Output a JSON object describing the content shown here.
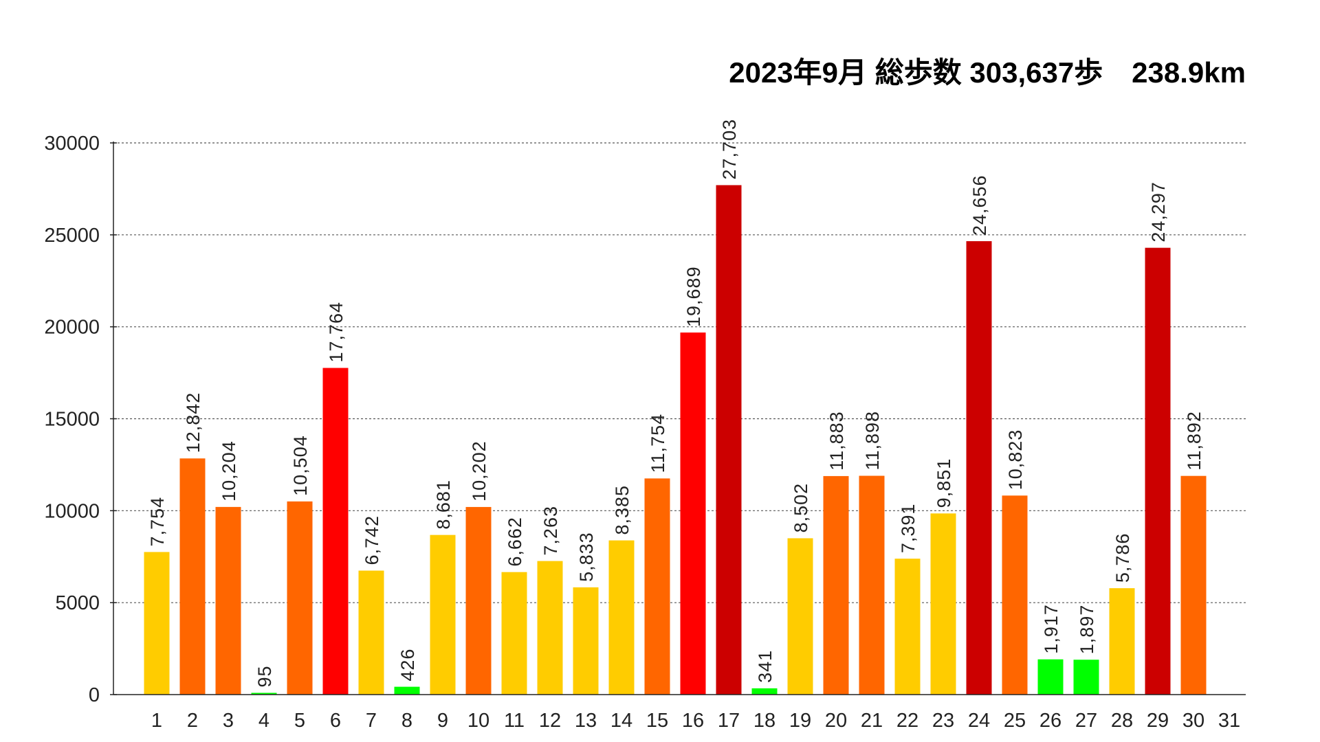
{
  "chart_data": {
    "type": "bar",
    "title": "2023年9月 総歩数 303,637歩　238.9km",
    "xlabel": "",
    "ylabel": "",
    "ylim": [
      0,
      30000
    ],
    "yticks": [
      0,
      5000,
      10000,
      15000,
      20000,
      25000,
      30000
    ],
    "grid": true,
    "categories": [
      "1",
      "2",
      "3",
      "4",
      "5",
      "6",
      "7",
      "8",
      "9",
      "10",
      "11",
      "12",
      "13",
      "14",
      "15",
      "16",
      "17",
      "18",
      "19",
      "20",
      "21",
      "22",
      "23",
      "24",
      "25",
      "26",
      "27",
      "28",
      "29",
      "30",
      "31"
    ],
    "values": [
      7754,
      12842,
      10204,
      95,
      10504,
      17764,
      6742,
      426,
      8681,
      10202,
      6662,
      7263,
      5833,
      8385,
      11754,
      19689,
      27703,
      341,
      8502,
      11883,
      11898,
      7391,
      9851,
      24656,
      10823,
      1917,
      1897,
      5786,
      24297,
      11892,
      null
    ],
    "value_labels": [
      "7,754",
      "12,842",
      "10,204",
      "95",
      "10,504",
      "17,764",
      "6,742",
      "426",
      "8,681",
      "10,202",
      "6,662",
      "7,263",
      "5,833",
      "8,385",
      "11,754",
      "19,689",
      "27,703",
      "341",
      "8,502",
      "11,883",
      "11,898",
      "7,391",
      "9,851",
      "24,656",
      "10,823",
      "1,917",
      "1,897",
      "5,786",
      "24,297",
      "11,892",
      ""
    ],
    "color_bands": [
      {
        "below": 2000,
        "color": "#00ff00"
      },
      {
        "below": 10000,
        "color": "#ffcc00"
      },
      {
        "below": 15000,
        "color": "#ff6600"
      },
      {
        "below": 20000,
        "color": "#ff0000"
      },
      {
        "below": 1000000,
        "color": "#cc0000"
      }
    ]
  }
}
